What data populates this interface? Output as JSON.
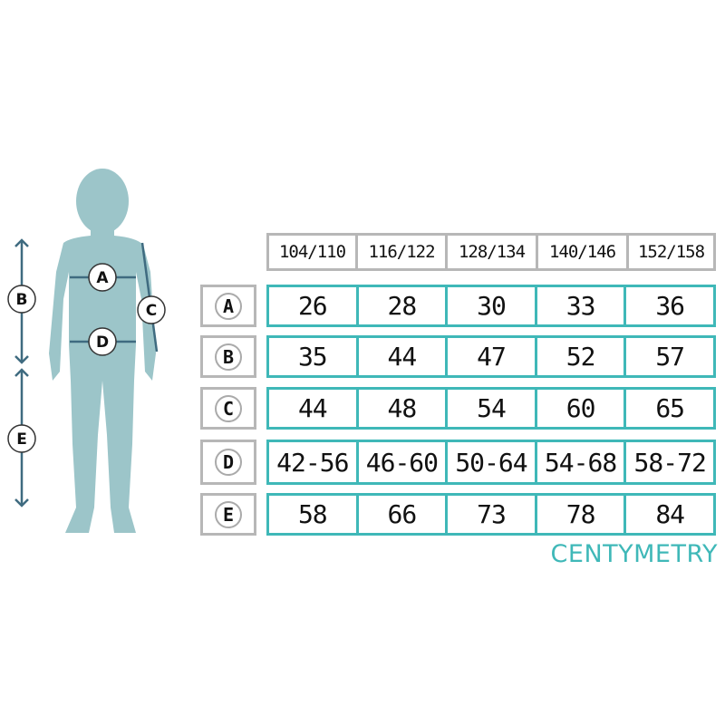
{
  "sizes": [
    "104/110",
    "116/122",
    "128/134",
    "140/146",
    "152/158"
  ],
  "rows": [
    {
      "label": "A",
      "values": [
        "26",
        "28",
        "30",
        "33",
        "36"
      ]
    },
    {
      "label": "B",
      "values": [
        "35",
        "44",
        "47",
        "52",
        "57"
      ]
    },
    {
      "label": "C",
      "values": [
        "44",
        "48",
        "54",
        "60",
        "65"
      ]
    },
    {
      "label": "D",
      "values": [
        "42-56",
        "46-60",
        "50-64",
        "54-68",
        "58-72"
      ]
    },
    {
      "label": "E",
      "values": [
        "58",
        "66",
        "73",
        "78",
        "84"
      ]
    }
  ],
  "figure_labels": {
    "a": "A",
    "b": "B",
    "c": "C",
    "d": "D",
    "e": "E"
  },
  "unit": "CENTYMETRY",
  "colors": {
    "accent": "#3fb8b8",
    "figure": "#9cc5c9",
    "measure_line": "#3f6b80",
    "header_border": "#b7b7b7"
  }
}
